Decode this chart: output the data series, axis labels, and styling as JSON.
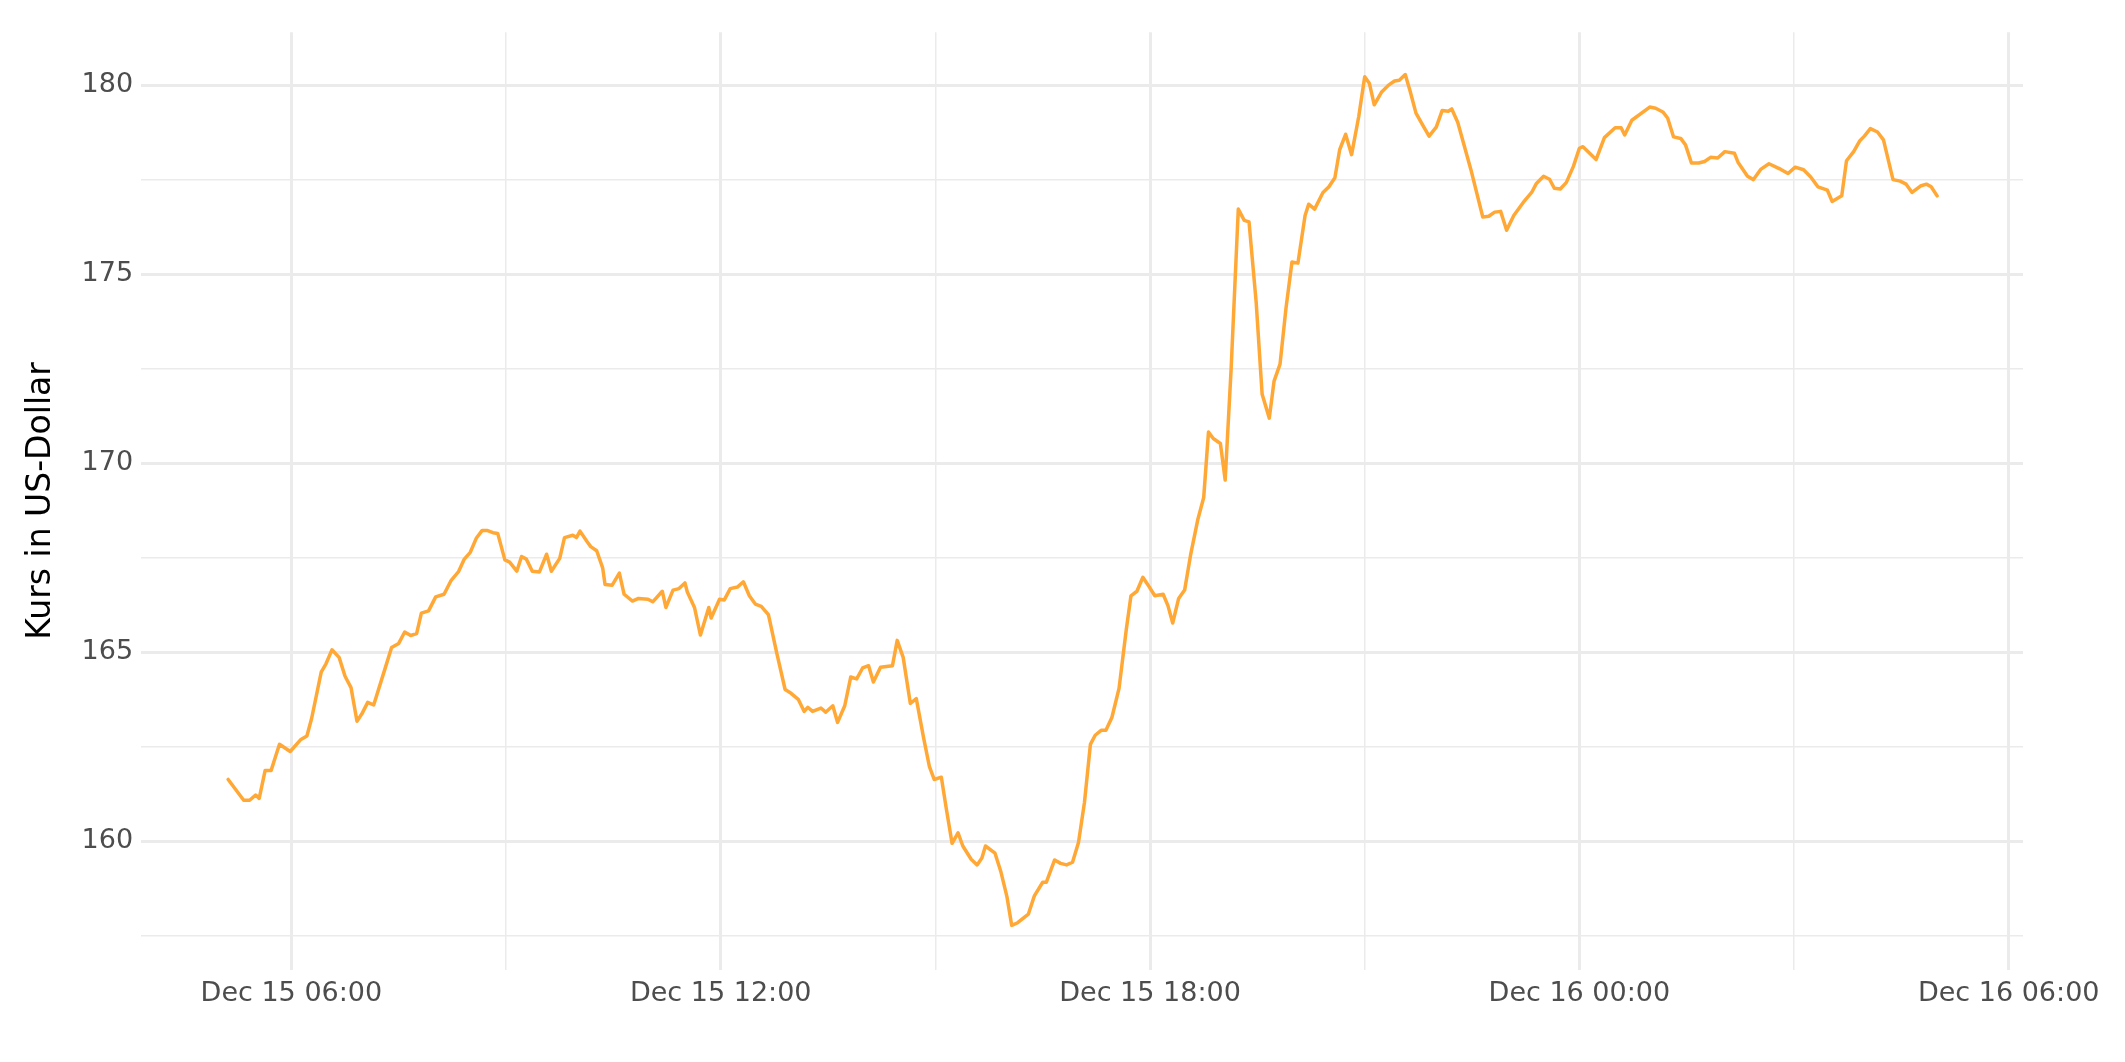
{
  "chart_data": {
    "type": "line",
    "ylabel": "Kurs in US-Dollar",
    "grid": true,
    "legend": false,
    "marker": "none",
    "line_style": "solid",
    "xlim": [
      "--12-15T03:54",
      "--12-16T06:12"
    ],
    "ylim": [
      156.6,
      181.4
    ],
    "xticks": [
      {
        "value": "--12-15T06:00",
        "label": "Dec 15 06:00"
      },
      {
        "value": "--12-15T09:00",
        "label": null
      },
      {
        "value": "--12-15T12:00",
        "label": "Dec 15 12:00"
      },
      {
        "value": "--12-15T15:00",
        "label": null
      },
      {
        "value": "--12-15T18:00",
        "label": "Dec 15 18:00"
      },
      {
        "value": "--12-15T21:00",
        "label": null
      },
      {
        "value": "--12-16T00:00",
        "label": "Dec 16 00:00"
      },
      {
        "value": "--12-16T03:00",
        "label": null
      },
      {
        "value": "--12-16T06:00",
        "label": "Dec 16 06:00"
      }
    ],
    "yticks": [
      {
        "value": 157.5,
        "label": null
      },
      160,
      {
        "value": 162.5,
        "label": null
      },
      165,
      {
        "value": 167.5,
        "label": null
      },
      170,
      {
        "value": 172.5,
        "label": null
      },
      175,
      {
        "value": 177.5,
        "label": null
      },
      180
    ],
    "x": [
      "--12-15T05:07",
      "--12-15T05:20",
      "--12-15T05:25",
      "--12-15T05:30",
      "--12-15T05:33",
      "--12-15T05:38",
      "--12-15T05:43",
      "--12-15T05:50",
      "--12-15T05:59",
      "--12-15T06:08",
      "--12-15T06:13",
      "--12-15T06:17",
      "--12-15T06:25",
      "--12-15T06:29",
      "--12-15T06:34",
      "--12-15T06:40",
      "--12-15T06:45",
      "--12-15T06:50",
      "--12-15T06:55",
      "--12-15T06:59",
      "--12-15T07:04",
      "--12-15T07:09",
      "--12-15T07:18",
      "--12-15T07:24",
      "--12-15T07:30",
      "--12-15T07:35",
      "--12-15T07:40",
      "--12-15T07:45",
      "--12-15T07:49",
      "--12-15T07:55",
      "--12-15T08:01",
      "--12-15T08:08",
      "--12-15T08:14",
      "--12-15T08:20",
      "--12-15T08:25",
      "--12-15T08:30",
      "--12-15T08:35",
      "--12-15T08:40",
      "--12-15T08:44",
      "--12-15T08:49",
      "--12-15T08:53",
      "--12-15T08:59",
      "--12-15T09:03",
      "--12-15T09:09",
      "--12-15T09:13",
      "--12-15T09:17",
      "--12-15T09:22",
      "--12-15T09:28",
      "--12-15T09:34",
      "--12-15T09:38",
      "--12-15T09:45",
      "--12-15T09:49",
      "--12-15T09:56",
      "--12-15T09:59",
      "--12-15T10:02",
      "--12-15T10:08",
      "--12-15T10:11",
      "--12-15T10:16",
      "--12-15T10:21",
      "--12-15T10:23",
      "--12-15T10:29",
      "--12-15T10:35",
      "--12-15T10:39",
      "--12-15T10:46",
      "--12-15T10:51",
      "--12-15T10:59",
      "--12-15T11:03",
      "--12-15T11:11",
      "--12-15T11:14",
      "--12-15T11:20",
      "--12-15T11:25",
      "--12-15T11:30",
      "--12-15T11:32",
      "--12-15T11:38",
      "--12-15T11:43",
      "--12-15T11:50",
      "--12-15T11:52",
      "--12-15T11:59",
      "--12-15T12:03",
      "--12-15T12:08",
      "--12-15T12:14",
      "--12-15T12:19",
      "--12-15T12:24",
      "--12-15T12:29",
      "--12-15T12:34",
      "--12-15T12:40",
      "--12-15T12:47",
      "--12-15T12:54",
      "--12-15T12:59",
      "--12-15T13:05",
      "--12-15T13:10",
      "--12-15T13:13",
      "--12-15T13:17",
      "--12-15T13:24",
      "--12-15T13:28",
      "--12-15T13:34",
      "--12-15T13:38",
      "--12-15T13:44",
      "--12-15T13:49",
      "--12-15T13:54",
      "--12-15T13:59",
      "--12-15T14:04",
      "--12-15T14:08",
      "--12-15T14:14",
      "--12-15T14:24",
      "--12-15T14:28",
      "--12-15T14:33",
      "--12-15T14:39",
      "--12-15T14:44",
      "--12-15T14:50",
      "--12-15T14:55",
      "--12-15T14:59",
      "--12-15T15:05",
      "--12-15T15:09",
      "--12-15T15:14",
      "--12-15T15:19",
      "--12-15T15:23",
      "--12-15T15:30",
      "--12-15T15:35",
      "--12-15T15:39",
      "--12-15T15:42",
      "--12-15T15:50",
      "--12-15T15:55",
      "--12-15T16:00",
      "--12-15T16:04",
      "--12-15T16:09",
      "--12-15T16:18",
      "--12-15T16:23",
      "--12-15T16:30",
      "--12-15T16:33",
      "--12-15T16:40",
      "--12-15T16:45",
      "--12-15T16:50",
      "--12-15T16:55",
      "--12-15T17:00",
      "--12-15T17:05",
      "--12-15T17:10",
      "--12-15T17:14",
      "--12-15T17:19",
      "--12-15T17:23",
      "--12-15T17:28",
      "--12-15T17:34",
      "--12-15T17:40",
      "--12-15T17:44",
      "--12-15T17:49",
      "--12-15T17:54",
      "--12-15T17:58",
      "--12-15T18:04",
      "--12-15T18:11",
      "--12-15T18:15",
      "--12-15T18:19",
      "--12-15T18:24",
      "--12-15T18:29",
      "--12-15T18:34",
      "--12-15T18:40",
      "--12-15T18:45",
      "--12-15T18:49",
      "--12-15T18:53",
      "--12-15T18:59",
      "--12-15T19:03",
      "--12-15T19:08",
      "--12-15T19:14",
      "--12-15T19:19",
      "--12-15T19:23",
      "--12-15T19:29",
      "--12-15T19:34",
      "--12-15T19:40",
      "--12-15T19:44",
      "--12-15T19:49",
      "--12-15T19:54",
      "--12-15T19:59",
      "--12-15T20:04",
      "--12-15T20:10",
      "--12-15T20:13",
      "--12-15T20:18",
      "--12-15T20:25",
      "--12-15T20:30",
      "--12-15T20:35",
      "--12-15T20:39",
      "--12-15T20:44",
      "--12-15T20:49",
      "--12-15T20:55",
      "--12-15T21:00",
      "--12-15T21:04",
      "--12-15T21:08",
      "--12-15T21:14",
      "--12-15T21:20",
      "--12-15T21:25",
      "--12-15T21:29",
      "--12-15T21:34",
      "--12-15T21:38",
      "--12-15T21:43",
      "--12-15T21:49",
      "--12-15T21:54",
      "--12-15T22:00",
      "--12-15T22:05",
      "--12-15T22:10",
      "--12-15T22:13",
      "--12-15T22:18",
      "--12-15T22:29",
      "--12-15T22:39",
      "--12-15T22:44",
      "--12-15T22:49",
      "--12-15T22:54",
      "--12-15T22:59",
      "--12-15T23:05",
      "--12-15T23:14",
      "--12-15T23:20",
      "--12-15T23:24",
      "--12-15T23:30",
      "--12-15T23:35",
      "--12-15T23:39",
      "--12-15T23:44",
      "--12-15T23:49",
      "--12-15T23:55",
      "--12-16T00:00",
      "--12-16T00:03",
      "--12-16T00:14",
      "--12-16T00:21",
      "--12-16T00:30",
      "--12-16T00:35",
      "--12-16T00:38",
      "--12-16T00:44",
      "--12-16T00:59",
      "--12-16T01:04",
      "--12-16T01:10",
      "--12-16T01:14",
      "--12-16T01:19",
      "--12-16T01:25",
      "--12-16T01:29",
      "--12-16T01:34",
      "--12-16T01:40",
      "--12-16T01:45",
      "--12-16T01:50",
      "--12-16T01:56",
      "--12-16T02:02",
      "--12-16T02:10",
      "--12-16T02:13",
      "--12-16T02:21",
      "--12-16T02:26",
      "--12-16T02:32",
      "--12-16T02:39",
      "--12-16T02:49",
      "--12-16T02:55",
      "--12-16T03:01",
      "--12-16T03:08",
      "--12-16T03:14",
      "--12-16T03:20",
      "--12-16T03:28",
      "--12-16T03:32",
      "--12-16T03:40",
      "--12-16T03:44",
      "--12-16T03:50",
      "--12-16T03:55",
      "--12-16T03:59",
      "--12-16T04:04",
      "--12-16T04:10",
      "--12-16T04:15",
      "--12-16T04:23",
      "--12-16T04:29",
      "--12-16T04:34",
      "--12-16T04:39",
      "--12-16T04:46",
      "--12-16T04:51",
      "--12-16T04:55",
      "--12-16T05:00"
    ],
    "series": [
      {
        "color": "#ffa836",
        "values": [
          161.63,
          161.08,
          161.08,
          161.22,
          161.13,
          161.87,
          161.87,
          162.56,
          162.37,
          162.69,
          162.78,
          163.25,
          164.47,
          164.69,
          165.06,
          164.86,
          164.36,
          164.06,
          163.17,
          163.36,
          163.67,
          163.6,
          164.51,
          165.12,
          165.23,
          165.53,
          165.44,
          165.49,
          166.03,
          166.09,
          166.46,
          166.53,
          166.9,
          167.12,
          167.46,
          167.64,
          168.01,
          168.22,
          168.22,
          168.16,
          168.14,
          167.44,
          167.38,
          167.14,
          167.53,
          167.46,
          167.14,
          167.12,
          167.59,
          167.14,
          167.48,
          168.03,
          168.09,
          168.03,
          168.2,
          167.92,
          167.79,
          167.68,
          167.23,
          166.79,
          166.77,
          167.09,
          166.53,
          166.35,
          166.42,
          166.4,
          166.33,
          166.61,
          166.18,
          166.64,
          166.68,
          166.83,
          166.59,
          166.18,
          165.45,
          166.18,
          165.9,
          166.4,
          166.38,
          166.68,
          166.72,
          166.86,
          166.49,
          166.27,
          166.21,
          165.99,
          164.97,
          164.01,
          163.91,
          163.75,
          163.43,
          163.54,
          163.43,
          163.52,
          163.41,
          163.58,
          163.14,
          163.58,
          164.34,
          164.29,
          164.58,
          164.64,
          164.21,
          164.6,
          164.64,
          165.31,
          164.86,
          163.64,
          163.77,
          162.75,
          161.97,
          161.63,
          161.69,
          160.89,
          159.94,
          160.22,
          159.87,
          159.52,
          159.37,
          159.55,
          159.87,
          159.68,
          159.18,
          158.53,
          157.77,
          157.84,
          158.07,
          158.55,
          158.91,
          158.91,
          159.5,
          159.41,
          159.37,
          159.44,
          159.96,
          161.02,
          162.56,
          162.8,
          162.93,
          162.93,
          163.27,
          164.04,
          165.58,
          166.49,
          166.61,
          166.98,
          166.79,
          166.49,
          166.53,
          166.23,
          165.77,
          166.42,
          166.64,
          167.57,
          168.5,
          169.09,
          170.82,
          170.65,
          170.52,
          169.55,
          172.5,
          176.72,
          176.42,
          176.38,
          174.25,
          171.82,
          171.19,
          172.17,
          172.62,
          174.1,
          175.32,
          175.29,
          176.55,
          176.85,
          176.72,
          177.16,
          177.31,
          177.55,
          178.29,
          178.7,
          178.16,
          179.17,
          180.22,
          180.04,
          179.48,
          179.81,
          180,
          180.11,
          180.13,
          180.28,
          179.85,
          179.26,
          178.92,
          178.65,
          178.89,
          179.33,
          179.31,
          179.37,
          179.02,
          177.77,
          176.51,
          176.53,
          176.64,
          176.66,
          176.16,
          176.55,
          176.94,
          177.16,
          177.4,
          177.59,
          177.51,
          177.27,
          177.25,
          177.42,
          177.85,
          178.33,
          178.37,
          178.03,
          178.61,
          178.87,
          178.87,
          178.68,
          179.07,
          179.42,
          179.39,
          179.29,
          179.13,
          178.63,
          178.59,
          178.42,
          177.94,
          177.94,
          177.98,
          178.09,
          178.07,
          178.24,
          178.2,
          177.96,
          177.59,
          177.5,
          177.77,
          177.92,
          177.77,
          177.66,
          177.83,
          177.76,
          177.57,
          177.31,
          177.22,
          176.92,
          177.07,
          178,
          178.24,
          178.52,
          178.65,
          178.85,
          178.76,
          178.55,
          177.5,
          177.46,
          177.38,
          177.16,
          177.33,
          177.38,
          177.31,
          177.07
        ]
      }
    ]
  }
}
